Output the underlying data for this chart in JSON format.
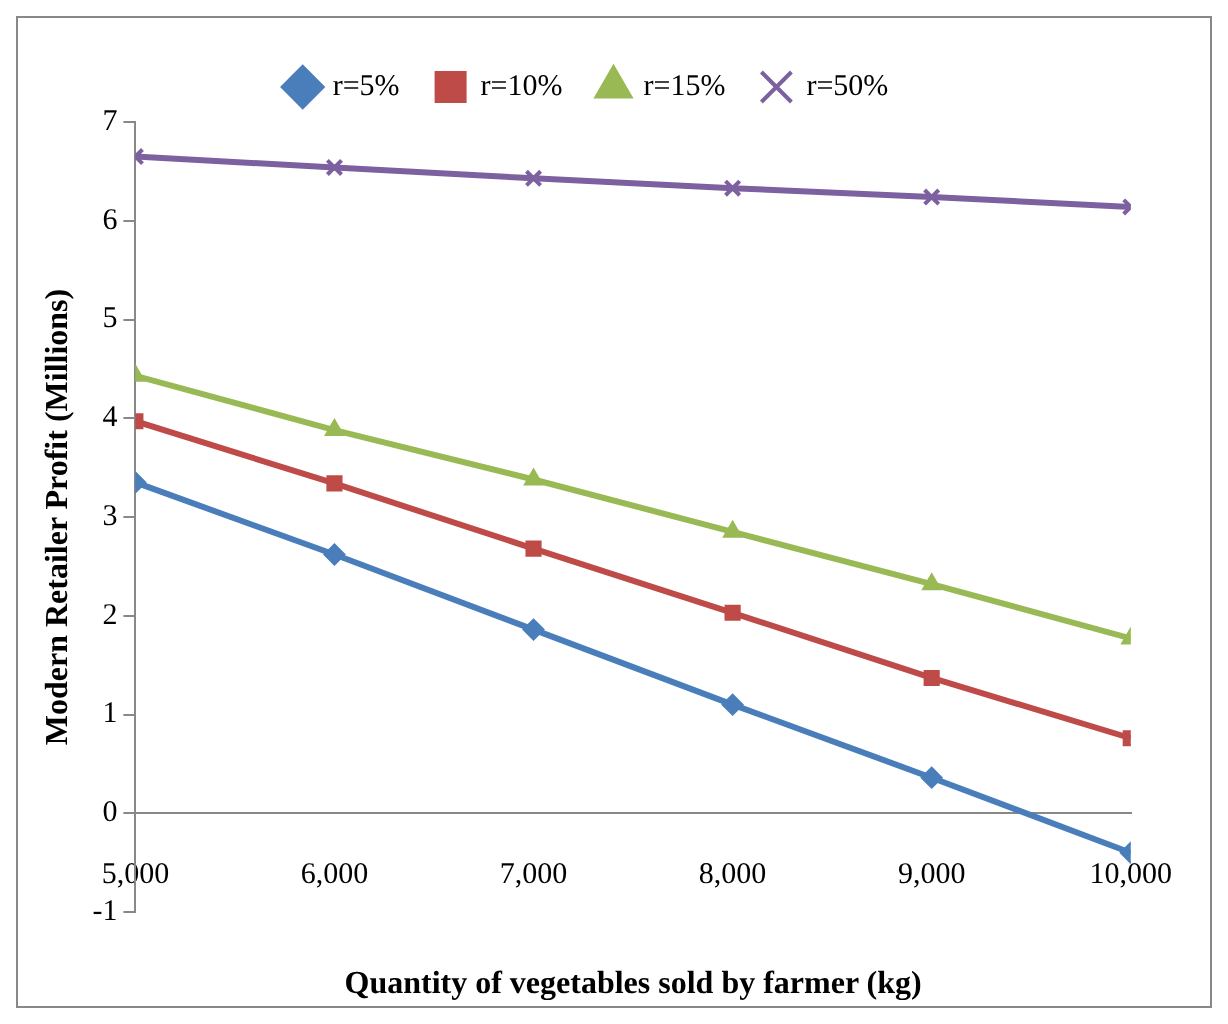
{
  "chart_data": {
    "type": "line",
    "xlabel": "Quantity of vegetables sold by farmer (kg)",
    "ylabel": "Modern Retailer Profit (Millions)",
    "x": [
      5000,
      6000,
      7000,
      8000,
      9000,
      10000
    ],
    "xlim": [
      5000,
      10000
    ],
    "xticks": [
      {
        "value": 5000,
        "label": "5,000"
      },
      {
        "value": 6000,
        "label": "6,000"
      },
      {
        "value": 7000,
        "label": "7,000"
      },
      {
        "value": 8000,
        "label": "8,000"
      },
      {
        "value": 9000,
        "label": "9,000"
      },
      {
        "value": 10000,
        "label": "10,000"
      }
    ],
    "ylim": [
      -1,
      7
    ],
    "yticks": [
      -1,
      0,
      1,
      2,
      3,
      4,
      5,
      6,
      7
    ],
    "grid": false,
    "legend": "top",
    "line_style": "solid",
    "series": [
      {
        "name": "r=5%",
        "color": "#4a7ebb",
        "marker": "diamond",
        "values": [
          3.35,
          2.62,
          1.86,
          1.1,
          0.36,
          -0.4
        ]
      },
      {
        "name": "r=10%",
        "color": "#be4b48",
        "marker": "square",
        "values": [
          3.97,
          3.34,
          2.68,
          2.03,
          1.37,
          0.76
        ]
      },
      {
        "name": "r=15%",
        "color": "#98b954",
        "marker": "triangle",
        "values": [
          4.43,
          3.88,
          3.38,
          2.85,
          2.32,
          1.77
        ]
      },
      {
        "name": "r=50%",
        "color": "#7d60a0",
        "marker": "cross",
        "values": [
          6.65,
          6.54,
          6.43,
          6.33,
          6.24,
          6.14
        ]
      }
    ]
  }
}
